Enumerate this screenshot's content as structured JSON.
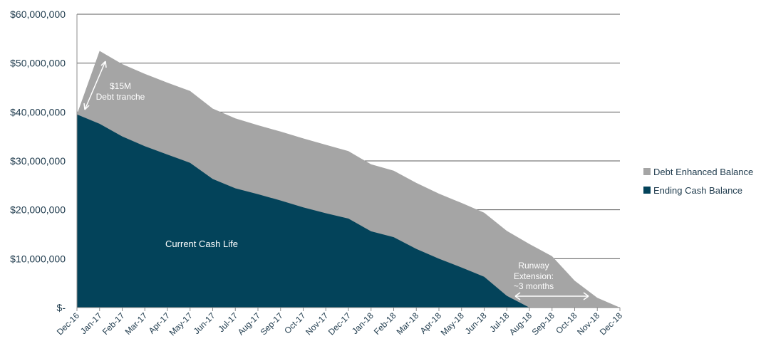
{
  "chart_data": {
    "type": "area",
    "title": "",
    "xlabel": "",
    "ylabel": "",
    "categories": [
      "Dec-16",
      "Jan-17",
      "Feb-17",
      "Mar-17",
      "Apr-17",
      "May-17",
      "Jun-17",
      "Jul-17",
      "Aug-17",
      "Sep-17",
      "Oct-17",
      "Nov-17",
      "Dec-17",
      "Jan-18",
      "Feb-18",
      "Mar-18",
      "Apr-18",
      "May-18",
      "Jun-18",
      "Jul-18",
      "Aug-18",
      "Sep-18",
      "Oct-18",
      "Nov-18",
      "Dec-18"
    ],
    "y_ticks": [
      "$-",
      "$10,000,000",
      "$20,000,000",
      "$30,000,000",
      "$40,000,000",
      "$50,000,000",
      "$60,000,000"
    ],
    "ylim": [
      0,
      60000000
    ],
    "grid": true,
    "legend_position": "right",
    "series": [
      {
        "name": "Debt Enhanced Balance",
        "color": "#a5a5a5",
        "values": [
          39500000,
          52500000,
          49800000,
          47800000,
          46000000,
          44300000,
          40700000,
          38700000,
          37300000,
          36000000,
          34600000,
          33300000,
          32000000,
          29300000,
          28000000,
          25500000,
          23300000,
          21400000,
          19400000,
          15700000,
          13000000,
          10500000,
          5500000,
          2000000,
          0
        ]
      },
      {
        "name": "Ending Cash Balance",
        "color": "#03435a",
        "values": [
          39500000,
          37600000,
          35000000,
          33000000,
          31300000,
          29600000,
          26300000,
          24400000,
          23200000,
          21900000,
          20500000,
          19300000,
          18200000,
          15600000,
          14400000,
          12000000,
          10000000,
          8200000,
          6300000,
          2400000,
          0,
          0,
          0,
          0,
          0
        ]
      }
    ],
    "annotations": {
      "debt_tranche": [
        "$15M",
        "Debt tranche"
      ],
      "current_cash_life": "Current Cash Life",
      "runway_extension": [
        "Runway",
        "Extension:",
        "~3 months"
      ]
    }
  }
}
